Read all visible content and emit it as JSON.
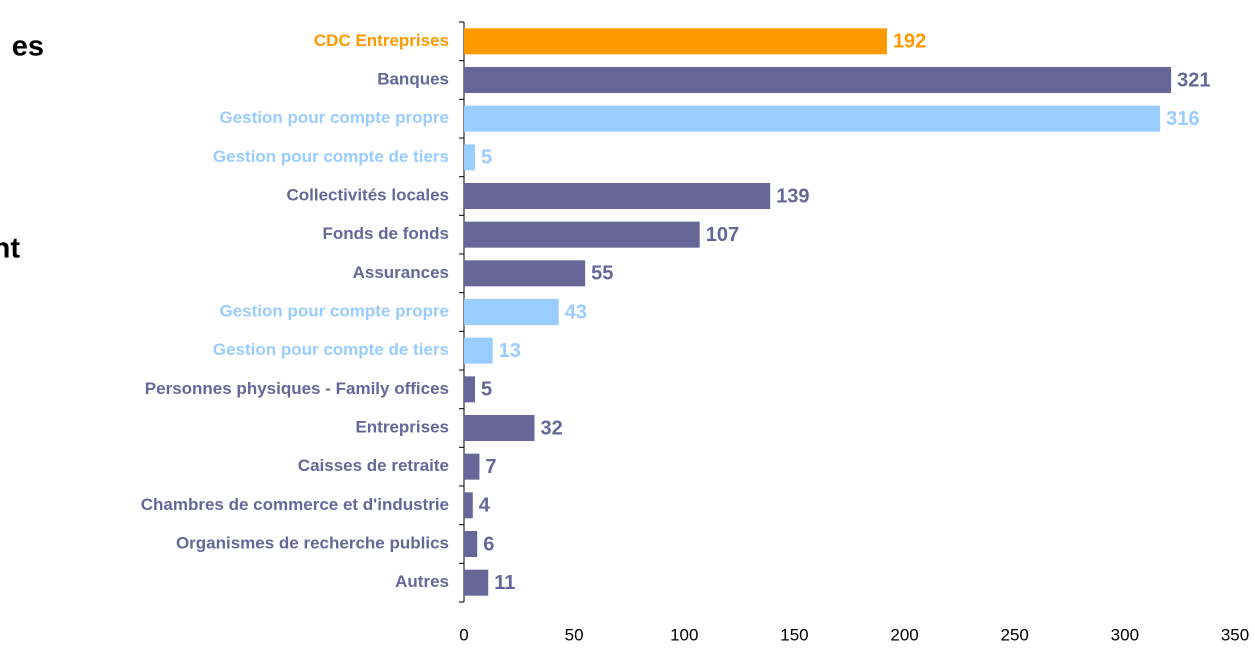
{
  "chart_data": {
    "type": "bar",
    "orientation": "horizontal",
    "annotations": [
      "es",
      "nt"
    ],
    "categories": [
      "CDC Entreprises",
      "Banques",
      "Gestion pour compte propre",
      "Gestion pour compte de tiers",
      "Collectivités locales",
      "Fonds de fonds",
      "Assurances",
      "Gestion pour compte propre",
      "Gestion pour compte de tiers",
      "Personnes physiques - Family offices",
      "Entreprises",
      "Caisses de retraite",
      "Chambres de commerce et d'industrie",
      "Organismes de recherche publics",
      "Autres"
    ],
    "values": [
      192,
      321,
      316,
      5,
      139,
      107,
      55,
      43,
      13,
      5,
      32,
      7,
      4,
      6,
      11
    ],
    "colors": [
      "#ff9900",
      "#666699",
      "#99ccff",
      "#99ccff",
      "#666699",
      "#666699",
      "#666699",
      "#99ccff",
      "#99ccff",
      "#666699",
      "#666699",
      "#666699",
      "#666699",
      "#666699",
      "#666699"
    ],
    "xlim": [
      0,
      350
    ],
    "xticks": [
      0,
      50,
      100,
      150,
      200,
      250,
      300,
      350
    ]
  }
}
